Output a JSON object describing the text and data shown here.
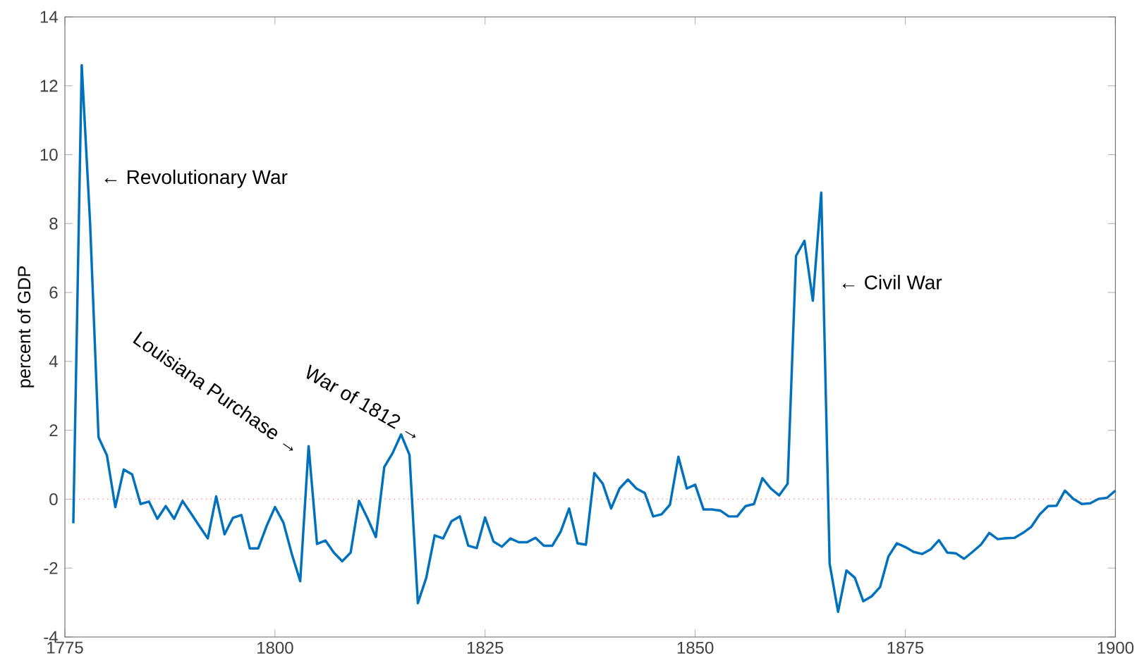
{
  "chart_data": {
    "type": "line",
    "ylabel": "percent of GDP",
    "x": [
      1776,
      1777,
      1778,
      1779,
      1780,
      1781,
      1782,
      1783,
      1784,
      1785,
      1786,
      1787,
      1788,
      1789,
      1790,
      1791,
      1792,
      1793,
      1794,
      1795,
      1796,
      1797,
      1798,
      1799,
      1800,
      1801,
      1802,
      1803,
      1804,
      1805,
      1806,
      1807,
      1808,
      1809,
      1810,
      1811,
      1812,
      1813,
      1814,
      1815,
      1816,
      1817,
      1818,
      1819,
      1820,
      1821,
      1822,
      1823,
      1824,
      1825,
      1826,
      1827,
      1828,
      1829,
      1830,
      1831,
      1832,
      1833,
      1834,
      1835,
      1836,
      1837,
      1838,
      1839,
      1840,
      1841,
      1842,
      1843,
      1844,
      1845,
      1846,
      1847,
      1848,
      1849,
      1850,
      1851,
      1852,
      1853,
      1854,
      1855,
      1856,
      1857,
      1858,
      1859,
      1860,
      1861,
      1862,
      1863,
      1864,
      1865,
      1866,
      1867,
      1868,
      1869,
      1870,
      1871,
      1872,
      1873,
      1874,
      1875,
      1876,
      1877,
      1878,
      1879,
      1880,
      1881,
      1882,
      1883,
      1884,
      1885,
      1886,
      1887,
      1888,
      1889,
      1890,
      1891,
      1892,
      1893,
      1894,
      1895,
      1896,
      1897,
      1898,
      1899,
      1900
    ],
    "series": [
      {
        "color": "#0072bd",
        "values": [
          -0.7,
          12.6,
          8.0,
          1.8,
          1.27,
          -0.23,
          0.86,
          0.72,
          -0.14,
          -0.07,
          -0.57,
          -0.2,
          -0.57,
          -0.05,
          -0.41,
          -0.78,
          -1.14,
          0.08,
          -1.02,
          -0.54,
          -0.46,
          -1.43,
          -1.43,
          -0.78,
          -0.23,
          -0.68,
          -1.59,
          -2.38,
          1.54,
          -1.3,
          -1.2,
          -1.55,
          -1.8,
          -1.55,
          -0.05,
          -0.55,
          -1.1,
          0.93,
          1.34,
          1.88,
          1.29,
          -3.02,
          -2.28,
          -1.05,
          -1.14,
          -0.64,
          -0.5,
          -1.35,
          -1.42,
          -0.53,
          -1.23,
          -1.38,
          -1.14,
          -1.25,
          -1.25,
          -1.12,
          -1.35,
          -1.35,
          -0.94,
          -0.27,
          -1.28,
          -1.32,
          0.76,
          0.45,
          -0.27,
          0.31,
          0.57,
          0.31,
          0.18,
          -0.5,
          -0.44,
          -0.16,
          1.23,
          0.31,
          0.42,
          -0.3,
          -0.3,
          -0.33,
          -0.5,
          -0.5,
          -0.2,
          -0.14,
          0.61,
          0.31,
          0.11,
          0.45,
          7.06,
          7.5,
          5.76,
          8.9,
          -1.87,
          -3.27,
          -2.07,
          -2.28,
          -2.96,
          -2.82,
          -2.55,
          -1.66,
          -1.28,
          -1.39,
          -1.53,
          -1.59,
          -1.46,
          -1.19,
          -1.55,
          -1.57,
          -1.73,
          -1.53,
          -1.32,
          -0.98,
          -1.16,
          -1.13,
          -1.12,
          -0.98,
          -0.8,
          -0.44,
          -0.2,
          -0.19,
          0.25,
          0.01,
          -0.14,
          -0.12,
          0.01,
          0.04,
          0.25
        ]
      }
    ],
    "xlim": [
      1775,
      1900
    ],
    "xticks": [
      1775,
      1800,
      1825,
      1850,
      1875,
      1900
    ],
    "ylim": [
      -4,
      14
    ],
    "yticks": [
      -4,
      -2,
      0,
      2,
      4,
      6,
      8,
      10,
      12,
      14
    ],
    "ref_lines": [
      {
        "axis": "y",
        "value": 0,
        "color": "#ff8080",
        "line_style": "dotted"
      }
    ],
    "annotations": [
      "← Revolutionary War",
      "Louisiana Purchase →",
      "War of 1812 →",
      "← Civil War"
    ],
    "grid": false,
    "marker": "none",
    "line_style": "solid"
  }
}
